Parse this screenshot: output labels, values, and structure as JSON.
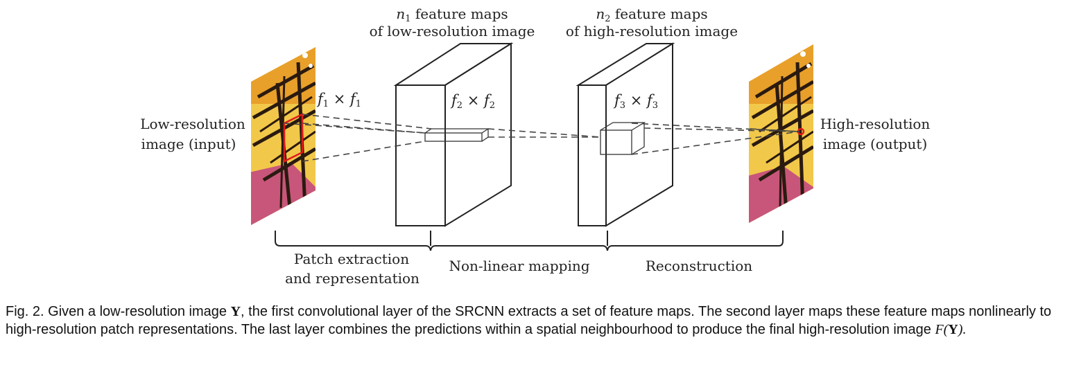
{
  "labels": {
    "input_line1": "Low-resolution",
    "input_line2": "image (input)",
    "output_line1": "High-resolution",
    "output_line2": "image (output)",
    "n1_sym": "n",
    "n1_sub": "1",
    "n1_rest": " feature maps",
    "n1_line2": "of low-resolution image",
    "n2_sym": "n",
    "n2_sub": "2",
    "n2_rest": " feature maps",
    "n2_line2": "of high-resolution image",
    "f1_a": "f",
    "f1_a_sub": "1",
    "f1_x": " × ",
    "f1_b": "f",
    "f1_b_sub": "1",
    "f2_a": "f",
    "f2_a_sub": "2",
    "f2_x": " × ",
    "f2_b": "f",
    "f2_b_sub": "2",
    "f3_a": "f",
    "f3_a_sub": "3",
    "f3_x": " × ",
    "f3_b": "f",
    "f3_b_sub": "3",
    "stage1_line1": "Patch extraction",
    "stage1_line2": "and representation",
    "stage2": "Non-linear mapping",
    "stage3": "Reconstruction"
  },
  "caption": {
    "p1": "Fig. 2. Given a low-resolution image ",
    "y1": "Y",
    "p2": ", the first convolutional layer of the SRCNN extracts a set of feature maps. The second layer maps these feature maps nonlinearly to high-resolution patch representations. The last layer combines the predictions within a spatial neighbourhood to produce the final high-resolution image ",
    "fy_f": "F",
    "fy_open": "(",
    "fy_y": "Y",
    "fy_close": ")."
  },
  "colors": {
    "patch_highlight": "#e01b1b",
    "outline": "#222222",
    "wing_orange": "#e8a02a",
    "wing_yellow": "#f2c84a",
    "wing_vein": "#2a1a10",
    "flower_pink": "#c8567a"
  }
}
